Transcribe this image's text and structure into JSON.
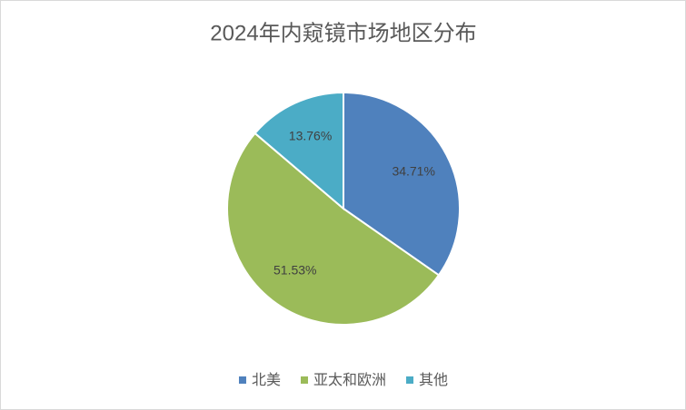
{
  "chart_data": {
    "type": "pie",
    "title": "2024年内窥镜市场地区分布",
    "categories": [
      "北美",
      "亚太和欧洲",
      "其他"
    ],
    "values": [
      34.71,
      51.53,
      13.76
    ],
    "value_labels": [
      "34.71%",
      "51.53%",
      "13.76%"
    ],
    "colors": [
      "#4f81bd",
      "#9bbb59",
      "#4bacc6"
    ],
    "legend": "bottom"
  }
}
